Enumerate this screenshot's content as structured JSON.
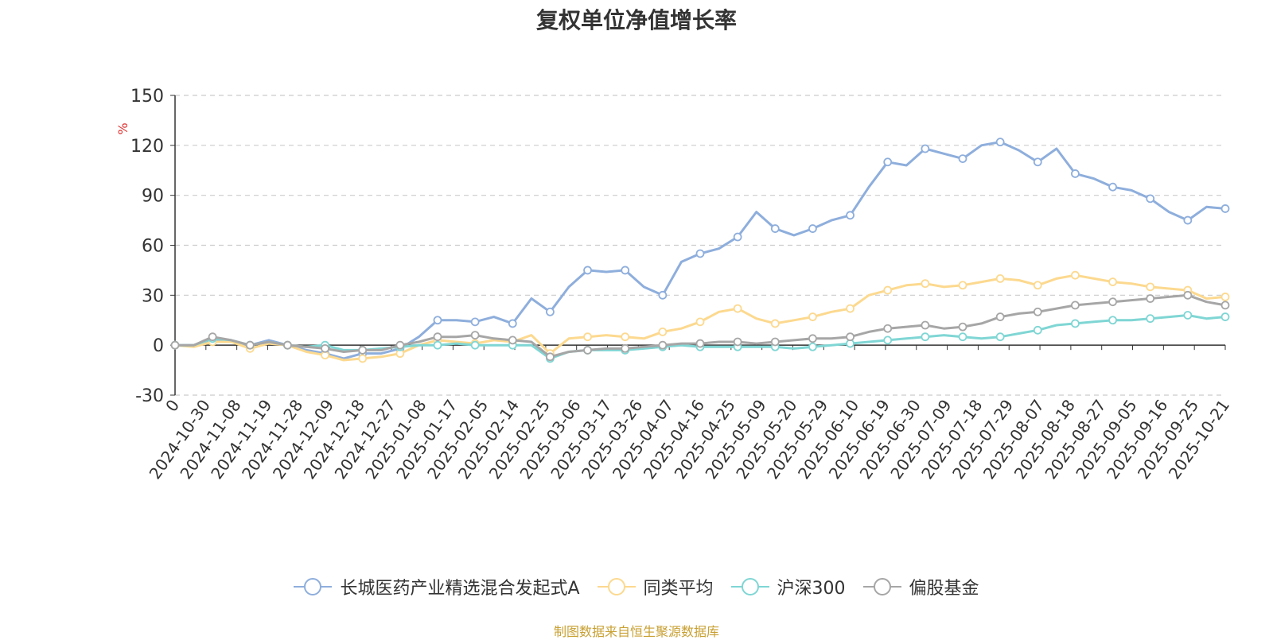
{
  "chart_data": {
    "type": "line",
    "title": "复权单位净值增长率",
    "ylabel": "%",
    "ylim": [
      -30,
      150
    ],
    "yticks": [
      -30,
      0,
      30,
      60,
      90,
      120,
      150
    ],
    "grid": true,
    "legend_position": "bottom",
    "x_tick_labels": [
      "0",
      "2024-10-30",
      "2024-11-08",
      "2024-11-19",
      "2024-11-28",
      "2024-12-09",
      "2024-12-18",
      "2024-12-27",
      "2025-01-08",
      "2025-01-17",
      "2025-02-05",
      "2025-02-14",
      "2025-02-25",
      "2025-03-06",
      "2025-03-17",
      "2025-03-26",
      "2025-04-07",
      "2025-04-16",
      "2025-04-25",
      "2025-05-09",
      "2025-05-20",
      "2025-05-29",
      "2025-06-10",
      "2025-06-19",
      "2025-06-30",
      "2025-07-09",
      "2025-07-18",
      "2025-07-29",
      "2025-08-07",
      "2025-08-18",
      "2025-08-27",
      "2025-09-05",
      "2025-09-16",
      "2025-09-25",
      "2025-10-21"
    ],
    "series": [
      {
        "name": "长城医药产业精选混合发起式A",
        "color": "#8eaedc",
        "values": [
          0,
          0,
          3,
          2,
          0,
          3,
          0,
          -3,
          -5,
          -8,
          -5,
          -5,
          -2,
          5,
          15,
          15,
          14,
          17,
          13,
          28,
          20,
          35,
          45,
          44,
          45,
          35,
          30,
          50,
          55,
          58,
          65,
          80,
          70,
          66,
          70,
          75,
          78,
          95,
          110,
          108,
          118,
          115,
          112,
          120,
          122,
          117,
          110,
          118,
          103,
          100,
          95,
          93,
          88,
          80,
          75,
          83,
          82
        ],
        "marker_indices": [
          0,
          2,
          4,
          6,
          8,
          10,
          12,
          14,
          16,
          18,
          20,
          22,
          24,
          26,
          28,
          30,
          32,
          34,
          36,
          38,
          40,
          42,
          44,
          46,
          48,
          50,
          52,
          54,
          56
        ]
      },
      {
        "name": "同类平均",
        "color": "#fcd98f",
        "values": [
          0,
          -1,
          2,
          2,
          -2,
          1,
          0,
          -4,
          -6,
          -9,
          -8,
          -7,
          -5,
          0,
          3,
          2,
          1,
          3,
          2,
          6,
          -5,
          4,
          5,
          6,
          5,
          4,
          8,
          10,
          14,
          20,
          22,
          16,
          13,
          15,
          17,
          20,
          22,
          30,
          33,
          36,
          37,
          35,
          36,
          38,
          40,
          39,
          36,
          40,
          42,
          40,
          38,
          37,
          35,
          34,
          33,
          28,
          29
        ],
        "marker_indices": [
          0,
          2,
          4,
          6,
          8,
          10,
          12,
          14,
          16,
          18,
          20,
          22,
          24,
          26,
          28,
          30,
          32,
          34,
          36,
          38,
          40,
          42,
          44,
          46,
          48,
          50,
          52,
          54,
          56
        ]
      },
      {
        "name": "沪深300",
        "color": "#7fd6d4",
        "values": [
          0,
          0,
          4,
          3,
          0,
          2,
          0,
          -1,
          0,
          -3,
          -3,
          -2,
          -1,
          0,
          0,
          1,
          0,
          0,
          0,
          0,
          -8,
          -4,
          -3,
          -3,
          -3,
          -2,
          -1,
          0,
          -1,
          -1,
          -1,
          -1,
          -1,
          -2,
          -1,
          0,
          1,
          2,
          3,
          4,
          5,
          6,
          5,
          4,
          5,
          7,
          9,
          12,
          13,
          14,
          15,
          15,
          16,
          17,
          18,
          16,
          17
        ],
        "marker_indices": [
          0,
          2,
          4,
          6,
          8,
          10,
          12,
          14,
          16,
          18,
          20,
          22,
          24,
          26,
          28,
          30,
          32,
          34,
          36,
          38,
          40,
          42,
          44,
          46,
          48,
          50,
          52,
          54,
          56
        ]
      },
      {
        "name": "偏股基金",
        "color": "#a6a6a6",
        "values": [
          0,
          0,
          5,
          3,
          0,
          2,
          0,
          -1,
          -2,
          -4,
          -3,
          -3,
          0,
          2,
          5,
          5,
          6,
          4,
          3,
          2,
          -7,
          -4,
          -3,
          -2,
          -2,
          -1,
          0,
          1,
          1,
          2,
          2,
          1,
          2,
          3,
          4,
          4,
          5,
          8,
          10,
          11,
          12,
          10,
          11,
          13,
          17,
          19,
          20,
          22,
          24,
          25,
          26,
          27,
          28,
          29,
          30,
          26,
          24
        ],
        "marker_indices": [
          0,
          2,
          4,
          6,
          8,
          10,
          12,
          14,
          16,
          18,
          20,
          22,
          24,
          26,
          28,
          30,
          32,
          34,
          36,
          38,
          40,
          42,
          44,
          46,
          48,
          50,
          52,
          54,
          56
        ]
      }
    ]
  },
  "source": "制图数据来自恒生聚源数据库"
}
